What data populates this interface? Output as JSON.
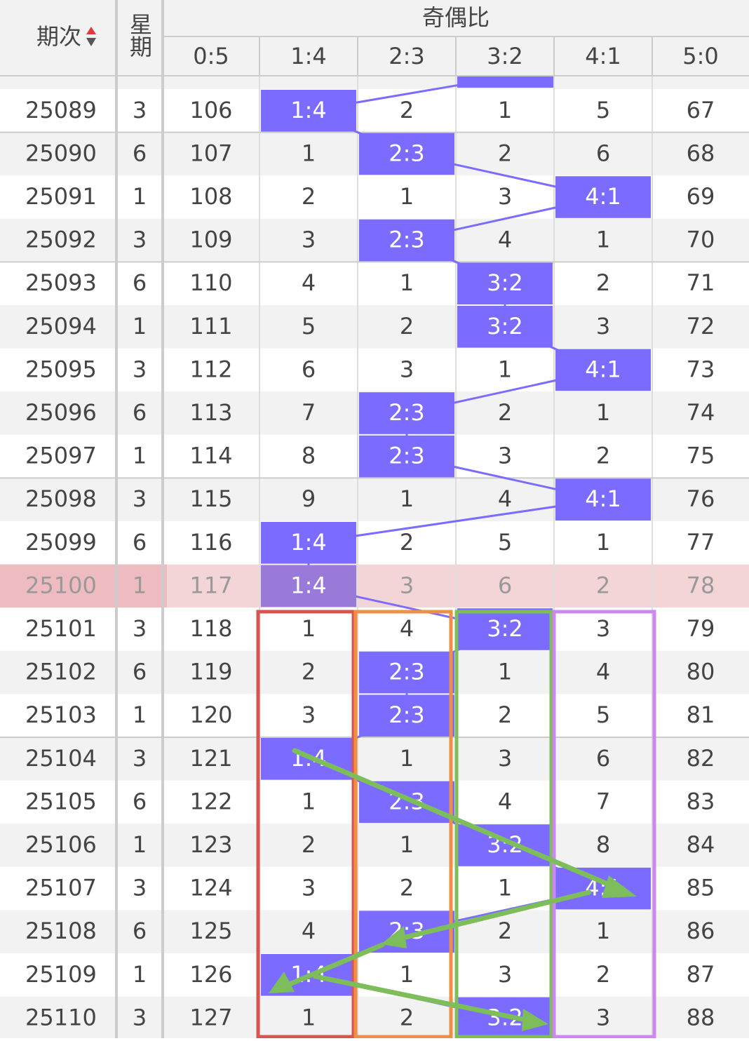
{
  "header": {
    "period": "期次",
    "weekday": "星期",
    "group": "奇偶比",
    "ratios": [
      "0:5",
      "1:4",
      "2:3",
      "3:2",
      "4:1",
      "5:0"
    ]
  },
  "rows": [
    [
      "25089",
      "3",
      "106",
      "1:4",
      "2",
      "1",
      "5",
      "67"
    ],
    [
      "25090",
      "6",
      "107",
      "1",
      "2:3",
      "2",
      "6",
      "68"
    ],
    [
      "25091",
      "1",
      "108",
      "2",
      "1",
      "3",
      "4:1",
      "69"
    ],
    [
      "25092",
      "3",
      "109",
      "3",
      "2:3",
      "4",
      "1",
      "70"
    ],
    [
      "25093",
      "6",
      "110",
      "4",
      "1",
      "3:2",
      "2",
      "71"
    ],
    [
      "25094",
      "1",
      "111",
      "5",
      "2",
      "3:2",
      "3",
      "72"
    ],
    [
      "25095",
      "3",
      "112",
      "6",
      "3",
      "1",
      "4:1",
      "73"
    ],
    [
      "25096",
      "6",
      "113",
      "7",
      "2:3",
      "2",
      "1",
      "74"
    ],
    [
      "25097",
      "1",
      "114",
      "8",
      "2:3",
      "3",
      "2",
      "75"
    ],
    [
      "25098",
      "3",
      "115",
      "9",
      "1",
      "4",
      "4:1",
      "76"
    ],
    [
      "25099",
      "6",
      "116",
      "1:4",
      "2",
      "5",
      "1",
      "77"
    ],
    [
      "25100",
      "1",
      "117",
      "1:4",
      "3",
      "6",
      "2",
      "78"
    ],
    [
      "25101",
      "3",
      "118",
      "1",
      "4",
      "3:2",
      "3",
      "79"
    ],
    [
      "25102",
      "6",
      "119",
      "2",
      "2:3",
      "1",
      "4",
      "80"
    ],
    [
      "25103",
      "1",
      "120",
      "3",
      "2:3",
      "2",
      "5",
      "81"
    ],
    [
      "25104",
      "3",
      "121",
      "1:4",
      "1",
      "3",
      "6",
      "82"
    ],
    [
      "25105",
      "6",
      "122",
      "1",
      "2:3",
      "4",
      "7",
      "83"
    ],
    [
      "25106",
      "1",
      "123",
      "2",
      "1",
      "3:2",
      "8",
      "84"
    ],
    [
      "25107",
      "3",
      "124",
      "3",
      "2",
      "1",
      "4:1",
      "85"
    ],
    [
      "25108",
      "6",
      "125",
      "4",
      "2:3",
      "2",
      "1",
      "86"
    ],
    [
      "25109",
      "1",
      "126",
      "1:4",
      "1",
      "3",
      "2",
      "87"
    ],
    [
      "25110",
      "3",
      "127",
      "1",
      "2",
      "3:2",
      "3",
      "88"
    ]
  ]
}
